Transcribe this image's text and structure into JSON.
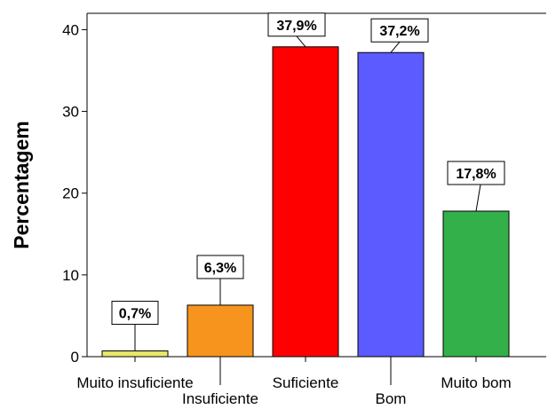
{
  "chart_data": {
    "type": "bar",
    "title": "",
    "xlabel": "",
    "ylabel": "Percentagem",
    "ylim": [
      0,
      42
    ],
    "yticks": [
      0,
      10,
      20,
      30,
      40
    ],
    "grid": false,
    "categories": [
      "Muito insuficiente",
      "Insuficiente",
      "Suficiente",
      "Bom",
      "Muito bom"
    ],
    "values": [
      0.7,
      6.3,
      37.9,
      37.2,
      17.8
    ],
    "data_labels": [
      "0,7%",
      "6,3%",
      "37,9%",
      "37,2%",
      "17,8%"
    ],
    "colors": [
      "#e8e86a",
      "#f7941d",
      "#ff0000",
      "#5b5bff",
      "#33b04a"
    ]
  }
}
